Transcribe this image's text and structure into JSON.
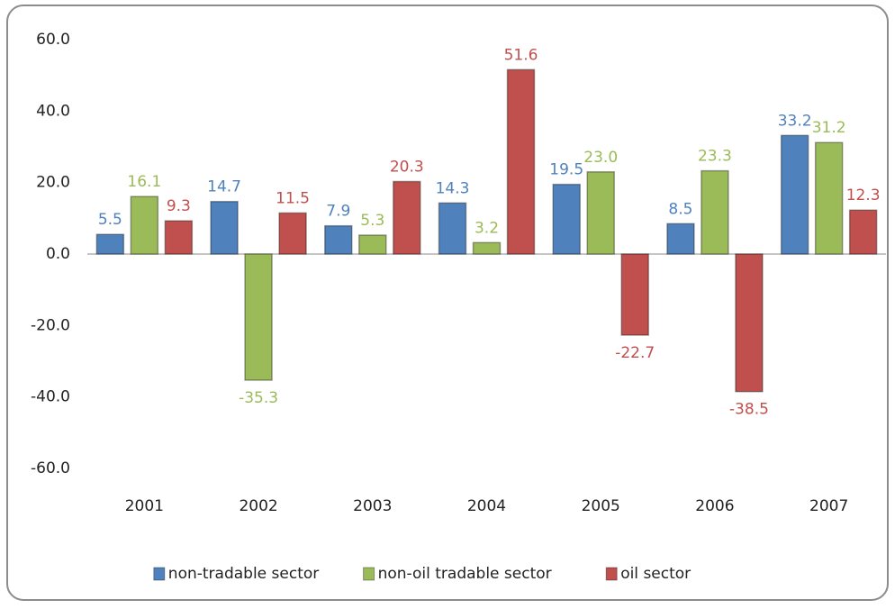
{
  "chart_data": {
    "type": "bar",
    "categories": [
      "2001",
      "2002",
      "2003",
      "2004",
      "2005",
      "2006",
      "2007"
    ],
    "series": [
      {
        "name": "non-tradable sector",
        "color": "#4f81bd",
        "values": [
          5.5,
          14.7,
          7.9,
          14.3,
          19.5,
          8.5,
          33.2
        ],
        "value_labels": [
          "5.5",
          "14.7",
          "7.9",
          "14.3",
          "19.5",
          "8.5",
          "33.2"
        ]
      },
      {
        "name": "non-oil tradable sector",
        "color": "#9bbb59",
        "values": [
          16.1,
          -35.3,
          5.3,
          3.2,
          23,
          23.3,
          31.2
        ],
        "value_labels": [
          "16.1",
          "-35.3",
          "5.3",
          "3.2",
          "23.0",
          "23.3",
          "31.2"
        ]
      },
      {
        "name": "oil sector",
        "color": "#c0504d",
        "values": [
          9.3,
          11.5,
          20.3,
          51.6,
          -22.7,
          -38.5,
          12.3
        ],
        "value_labels": [
          "9.3",
          "11.5",
          "20.3",
          "51.6",
          "-22.7",
          "-38.5",
          "12.3"
        ]
      }
    ],
    "ylim": [
      -60,
      60
    ],
    "yticks": [
      {
        "value": -60,
        "label": "-60.0"
      },
      {
        "value": -40,
        "label": "-40.0"
      },
      {
        "value": -20,
        "label": "-20.0"
      },
      {
        "value": 0,
        "label": "0.0"
      },
      {
        "value": 20,
        "label": "20.0"
      },
      {
        "value": 40,
        "label": "40.0"
      },
      {
        "value": 60,
        "label": "60.0"
      }
    ],
    "grid": false,
    "legend": "bottom"
  }
}
